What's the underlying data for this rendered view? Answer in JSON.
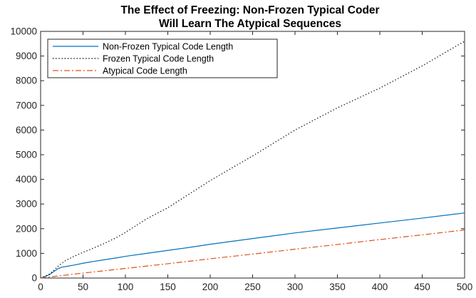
{
  "chart_data": {
    "type": "line",
    "title": [
      "The Effect of Freezing: Non-Frozen Typical Coder",
      "Will Learn The Atypical Sequences"
    ],
    "xlabel": "",
    "ylabel": "",
    "xlim": [
      0,
      500
    ],
    "ylim": [
      0,
      10000
    ],
    "x_ticks": [
      0,
      50,
      100,
      150,
      200,
      250,
      300,
      350,
      400,
      450,
      500
    ],
    "y_ticks": [
      0,
      1000,
      2000,
      3000,
      4000,
      5000,
      6000,
      7000,
      8000,
      9000,
      10000
    ],
    "grid": false,
    "legend_position": "top-left",
    "series": [
      {
        "name": "Non-Frozen Typical Code Length",
        "color": "#0072BD",
        "style": "solid",
        "x": [
          0,
          5,
          10,
          15,
          20,
          25,
          30,
          40,
          50,
          60,
          75,
          90,
          100,
          125,
          150,
          175,
          200,
          250,
          300,
          350,
          400,
          450,
          500
        ],
        "y": [
          0,
          60,
          130,
          250,
          370,
          440,
          470,
          530,
          600,
          660,
          740,
          820,
          880,
          1000,
          1120,
          1240,
          1370,
          1600,
          1830,
          2030,
          2230,
          2430,
          2640
        ]
      },
      {
        "name": "Frozen Typical Code Length",
        "color": "#000000",
        "style": "dotted",
        "x": [
          0,
          5,
          10,
          15,
          20,
          25,
          30,
          40,
          50,
          60,
          75,
          90,
          100,
          125,
          150,
          175,
          200,
          250,
          300,
          350,
          400,
          450,
          500
        ],
        "y": [
          0,
          70,
          150,
          290,
          460,
          600,
          720,
          890,
          1040,
          1180,
          1400,
          1650,
          1850,
          2400,
          2850,
          3400,
          3950,
          4950,
          6000,
          6900,
          7700,
          8600,
          9600
        ]
      },
      {
        "name": "Atypical Code Length",
        "color": "#D95319",
        "style": "dashdot",
        "x": [
          0,
          50,
          100,
          150,
          200,
          250,
          300,
          350,
          400,
          450,
          500
        ],
        "y": [
          0,
          200,
          390,
          580,
          780,
          970,
          1170,
          1360,
          1560,
          1750,
          1950
        ]
      }
    ]
  }
}
